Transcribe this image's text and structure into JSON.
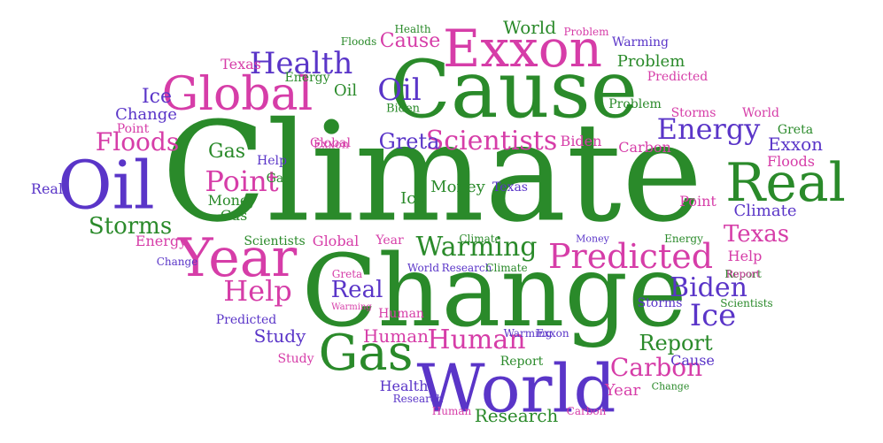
{
  "palette": {
    "green": "#2a8a2a",
    "purple": "#5a35c8",
    "pink": "#d63da8"
  },
  "words": [
    {
      "text": "Climate",
      "color": "green"
    },
    {
      "text": "Change",
      "color": "green"
    },
    {
      "text": "Cause",
      "color": "green"
    },
    {
      "text": "Exxon",
      "color": "pink"
    },
    {
      "text": "World",
      "color": "purple"
    },
    {
      "text": "Oil",
      "color": "purple"
    },
    {
      "text": "Global",
      "color": "pink"
    },
    {
      "text": "Year",
      "color": "pink"
    },
    {
      "text": "Real",
      "color": "green"
    },
    {
      "text": "Gas",
      "color": "green"
    },
    {
      "text": "Predicted",
      "color": "pink"
    },
    {
      "text": "Health",
      "color": "purple"
    },
    {
      "text": "Oil",
      "color": "purple"
    },
    {
      "text": "Energy",
      "color": "purple"
    },
    {
      "text": "Scientists",
      "color": "pink"
    },
    {
      "text": "Human",
      "color": "pink"
    },
    {
      "text": "Warming",
      "color": "green"
    },
    {
      "text": "Point",
      "color": "pink"
    },
    {
      "text": "Help",
      "color": "pink"
    },
    {
      "text": "Biden",
      "color": "purple"
    },
    {
      "text": "Ice",
      "color": "purple"
    },
    {
      "text": "Carbon",
      "color": "pink"
    },
    {
      "text": "Floods",
      "color": "pink"
    },
    {
      "text": "Storms",
      "color": "green"
    },
    {
      "text": "Texas",
      "color": "pink"
    },
    {
      "text": "Report",
      "color": "green"
    },
    {
      "text": "Greta",
      "color": "purple"
    },
    {
      "text": "Research",
      "color": "green"
    },
    {
      "text": "Real",
      "color": "purple"
    },
    {
      "text": "Gas",
      "color": "green"
    },
    {
      "text": "Human",
      "color": "pink"
    },
    {
      "text": "Study",
      "color": "purple"
    },
    {
      "text": "Money",
      "color": "green"
    },
    {
      "text": "Climate",
      "color": "purple"
    },
    {
      "text": "Problem",
      "color": "green"
    },
    {
      "text": "World",
      "color": "green"
    },
    {
      "text": "Cause",
      "color": "pink"
    },
    {
      "text": "Ice",
      "color": "purple"
    },
    {
      "text": "Change",
      "color": "purple"
    },
    {
      "text": "Exxon",
      "color": "purple"
    },
    {
      "text": "Floods",
      "color": "pink"
    },
    {
      "text": "Year",
      "color": "pink"
    },
    {
      "text": "Oil",
      "color": "green"
    },
    {
      "text": "Ice",
      "color": "green"
    },
    {
      "text": "Gas",
      "color": "green"
    },
    {
      "text": "Point",
      "color": "pink"
    },
    {
      "text": "Texas",
      "color": "pink"
    },
    {
      "text": "Help",
      "color": "pink"
    },
    {
      "text": "Global",
      "color": "pink"
    },
    {
      "text": "Scientists",
      "color": "green"
    },
    {
      "text": "Biden",
      "color": "pink"
    },
    {
      "text": "Energy",
      "color": "pink"
    },
    {
      "text": "Health",
      "color": "purple"
    },
    {
      "text": "Cause",
      "color": "purple"
    },
    {
      "text": "Carbon",
      "color": "pink"
    },
    {
      "text": "Greta",
      "color": "green"
    },
    {
      "text": "Point",
      "color": "pink"
    },
    {
      "text": "Real",
      "color": "purple"
    },
    {
      "text": "Money",
      "color": "green"
    },
    {
      "text": "Gas",
      "color": "green"
    },
    {
      "text": "Help",
      "color": "purple"
    },
    {
      "text": "Warming",
      "color": "purple"
    },
    {
      "text": "Predicted",
      "color": "pink"
    },
    {
      "text": "World",
      "color": "pink"
    },
    {
      "text": "Storms",
      "color": "pink"
    },
    {
      "text": "Global",
      "color": "pink"
    },
    {
      "text": "Problem",
      "color": "green"
    },
    {
      "text": "Report",
      "color": "green"
    },
    {
      "text": "Energy",
      "color": "green"
    },
    {
      "text": "Year",
      "color": "pink"
    },
    {
      "text": "Texas",
      "color": "purple"
    },
    {
      "text": "Biden",
      "color": "green"
    },
    {
      "text": "Exxon",
      "color": "pink"
    },
    {
      "text": "Study",
      "color": "pink"
    },
    {
      "text": "Predicted",
      "color": "purple"
    },
    {
      "text": "Report",
      "color": "green"
    },
    {
      "text": "Research",
      "color": "purple"
    },
    {
      "text": "Human",
      "color": "pink"
    },
    {
      "text": "Carbon",
      "color": "pink"
    },
    {
      "text": "Health",
      "color": "green"
    },
    {
      "text": "Floods",
      "color": "green"
    },
    {
      "text": "Warming",
      "color": "purple"
    },
    {
      "text": "Problem",
      "color": "pink"
    },
    {
      "text": "Energy",
      "color": "green"
    },
    {
      "text": "Storms",
      "color": "purple"
    },
    {
      "text": "Scientists",
      "color": "green"
    },
    {
      "text": "Research",
      "color": "purple"
    },
    {
      "text": "Climate",
      "color": "green"
    },
    {
      "text": "Change",
      "color": "purple"
    },
    {
      "text": "Change",
      "color": "green"
    },
    {
      "text": "Greta",
      "color": "pink"
    },
    {
      "text": "World",
      "color": "purple"
    },
    {
      "text": "Money",
      "color": "purple"
    },
    {
      "text": "Warming",
      "color": "pink"
    },
    {
      "text": "Exxon",
      "color": "purple"
    },
    {
      "text": "Report",
      "color": "pink"
    },
    {
      "text": "Human",
      "color": "pink"
    },
    {
      "text": "Climate",
      "color": "green"
    }
  ]
}
